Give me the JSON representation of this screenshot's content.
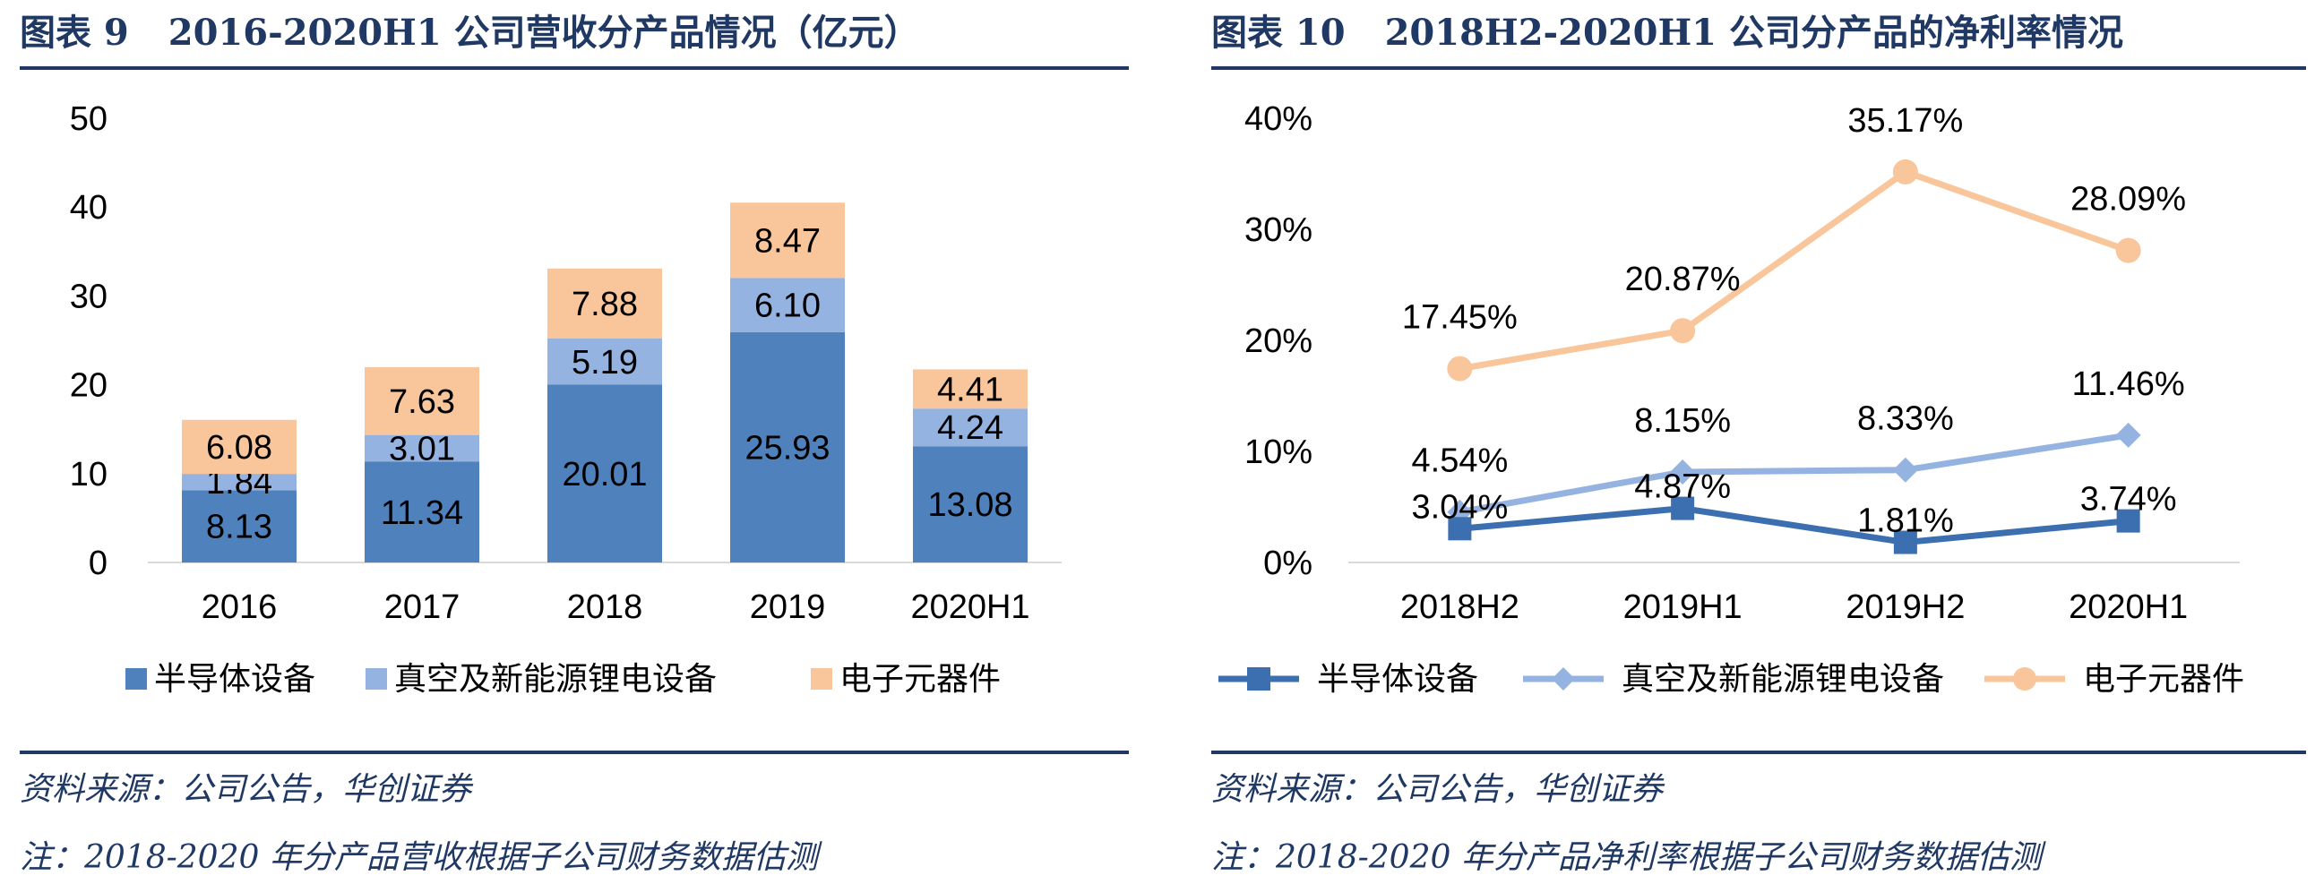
{
  "left": {
    "figure_number": "图表 9",
    "title": "2016-2020H1 公司营收分产品情况（亿元）",
    "source": "资料来源：公司公告，华创证券",
    "note": "注：2018-2020 年分产品营收根据子公司财务数据估测",
    "colors": {
      "semiconductor": "#4f81bd",
      "vacuum": "#95b3e1",
      "electronic": "#f9c59a"
    }
  },
  "right": {
    "figure_number": "图表 10",
    "title": "2018H2-2020H1 公司分产品的净利率情况",
    "source": "资料来源：公司公告，华创证券",
    "note": "注：2018-2020 年分产品净利率根据子公司财务数据估测",
    "colors": {
      "semiconductor": "#3c6fb0",
      "vacuum": "#95b3e1",
      "electronic": "#f9c59a"
    }
  },
  "chart_data": [
    {
      "type": "bar",
      "stacked": true,
      "categories": [
        "2016",
        "2017",
        "2018",
        "2019",
        "2020H1"
      ],
      "series": [
        {
          "name": "半导体设备",
          "values": [
            8.13,
            11.34,
            20.01,
            25.93,
            13.08
          ],
          "labels": [
            "8.13",
            "11.34",
            "20.01",
            "25.93",
            "13.08"
          ]
        },
        {
          "name": "真空及新能源锂电设备",
          "values": [
            1.84,
            3.01,
            5.19,
            6.1,
            4.24
          ],
          "labels": [
            "1.84",
            "3.01",
            "5.19",
            "6.10",
            "4.24"
          ]
        },
        {
          "name": "电子元器件",
          "values": [
            6.08,
            7.63,
            7.88,
            8.47,
            4.41
          ],
          "labels": [
            "6.08",
            "7.63",
            "7.88",
            "8.47",
            "4.41"
          ]
        }
      ],
      "yticks": [
        "0",
        "10",
        "20",
        "30",
        "40",
        "50"
      ],
      "ylim": [
        0,
        50
      ],
      "grid": false,
      "legend_position": "bottom"
    },
    {
      "type": "line",
      "categories": [
        "2018H2",
        "2019H1",
        "2019H2",
        "2020H1"
      ],
      "series": [
        {
          "name": "半导体设备",
          "marker": "square",
          "values": [
            3.04,
            4.87,
            1.81,
            3.74
          ],
          "labels": [
            "3.04%",
            "4.87%",
            "1.81%",
            "3.74%"
          ]
        },
        {
          "name": "真空及新能源锂电设备",
          "marker": "diamond",
          "values": [
            4.54,
            8.15,
            8.33,
            11.46
          ],
          "labels": [
            "4.54%",
            "8.15%",
            "8.33%",
            "11.46%"
          ]
        },
        {
          "name": "电子元器件",
          "marker": "circle",
          "values": [
            17.45,
            20.87,
            35.17,
            28.09
          ],
          "labels": [
            "17.45%",
            "20.87%",
            "35.17%",
            "28.09%"
          ]
        }
      ],
      "yticks": [
        "0%",
        "10%",
        "20%",
        "30%",
        "40%"
      ],
      "ylim": [
        0,
        40
      ],
      "grid": false,
      "legend_position": "bottom"
    }
  ]
}
